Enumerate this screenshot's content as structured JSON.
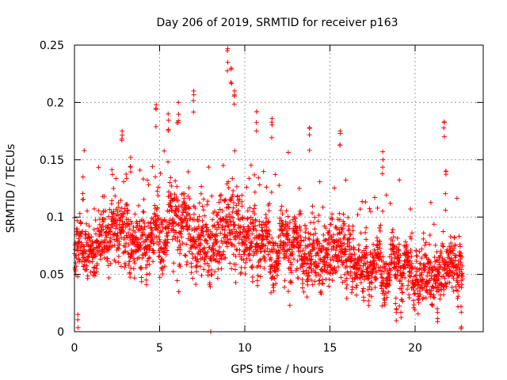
{
  "chart_data": {
    "type": "scatter",
    "title": "Day 206 of 2019, SRMTID for receiver p163",
    "xlabel": "GPS time / hours",
    "ylabel": "SRMTID / TECUs",
    "xlim": [
      0,
      24
    ],
    "ylim": [
      0,
      0.25
    ],
    "xticks": [
      0,
      5,
      10,
      15,
      20
    ],
    "yticks": [
      0,
      0.05,
      0.1,
      0.15,
      0.2,
      0.25
    ],
    "xtick_labels": [
      "0",
      "5",
      "10",
      "15",
      "20"
    ],
    "ytick_labels": [
      "0",
      "0.05",
      "0.1",
      "0.15",
      "0.2",
      "0.25"
    ],
    "grid": true,
    "marker": "+",
    "color": "#ff0000",
    "time_range_hours": [
      0,
      22.8
    ],
    "series": [
      {
        "name": "SRMTID",
        "profile": [
          {
            "x": 0.0,
            "y": 0.075,
            "spread": 0.018
          },
          {
            "x": 1.0,
            "y": 0.075,
            "spread": 0.02
          },
          {
            "x": 2.0,
            "y": 0.08,
            "spread": 0.02
          },
          {
            "x": 3.0,
            "y": 0.09,
            "spread": 0.025
          },
          {
            "x": 4.0,
            "y": 0.08,
            "spread": 0.022
          },
          {
            "x": 5.0,
            "y": 0.095,
            "spread": 0.025
          },
          {
            "x": 6.0,
            "y": 0.095,
            "spread": 0.028
          },
          {
            "x": 7.0,
            "y": 0.09,
            "spread": 0.025
          },
          {
            "x": 8.0,
            "y": 0.085,
            "spread": 0.025
          },
          {
            "x": 9.0,
            "y": 0.09,
            "spread": 0.028
          },
          {
            "x": 10.0,
            "y": 0.085,
            "spread": 0.025
          },
          {
            "x": 11.0,
            "y": 0.085,
            "spread": 0.025
          },
          {
            "x": 12.0,
            "y": 0.075,
            "spread": 0.022
          },
          {
            "x": 13.0,
            "y": 0.075,
            "spread": 0.022
          },
          {
            "x": 14.0,
            "y": 0.075,
            "spread": 0.022
          },
          {
            "x": 15.0,
            "y": 0.075,
            "spread": 0.022
          },
          {
            "x": 16.0,
            "y": 0.065,
            "spread": 0.02
          },
          {
            "x": 17.0,
            "y": 0.06,
            "spread": 0.018
          },
          {
            "x": 18.0,
            "y": 0.065,
            "spread": 0.02
          },
          {
            "x": 19.0,
            "y": 0.055,
            "spread": 0.018
          },
          {
            "x": 20.0,
            "y": 0.055,
            "spread": 0.018
          },
          {
            "x": 21.0,
            "y": 0.06,
            "spread": 0.018
          },
          {
            "x": 22.0,
            "y": 0.055,
            "spread": 0.016
          },
          {
            "x": 22.8,
            "y": 0.05,
            "spread": 0.015
          }
        ],
        "outliers": [
          {
            "x": 0.2,
            "y": 0.015
          },
          {
            "x": 0.5,
            "y": 0.135
          },
          {
            "x": 2.8,
            "y": 0.175
          },
          {
            "x": 3.3,
            "y": 0.152
          },
          {
            "x": 4.8,
            "y": 0.198
          },
          {
            "x": 5.5,
            "y": 0.19
          },
          {
            "x": 6.1,
            "y": 0.2
          },
          {
            "x": 7.0,
            "y": 0.21
          },
          {
            "x": 8.0,
            "y": 0.0
          },
          {
            "x": 9.0,
            "y": 0.247
          },
          {
            "x": 9.2,
            "y": 0.23
          },
          {
            "x": 9.4,
            "y": 0.21
          },
          {
            "x": 10.7,
            "y": 0.192
          },
          {
            "x": 11.6,
            "y": 0.186
          },
          {
            "x": 13.8,
            "y": 0.178
          },
          {
            "x": 15.6,
            "y": 0.175
          },
          {
            "x": 18.1,
            "y": 0.157
          },
          {
            "x": 18.9,
            "y": 0.02
          },
          {
            "x": 21.3,
            "y": 0.02
          },
          {
            "x": 21.7,
            "y": 0.183
          },
          {
            "x": 21.8,
            "y": 0.14
          },
          {
            "x": 22.7,
            "y": 0.022
          }
        ]
      }
    ]
  }
}
